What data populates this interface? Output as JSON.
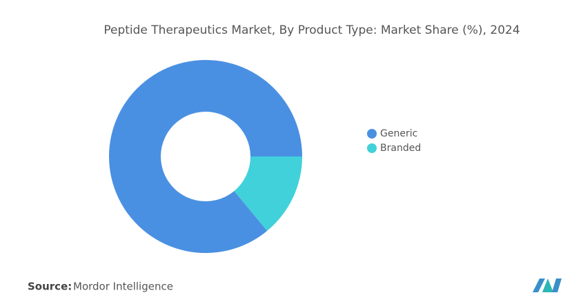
{
  "chart_data": {
    "type": "donut",
    "title": "Peptide Therapeutics Market, By Product Type: Market Share (%), 2024",
    "categories": [
      "Generic",
      "Branded"
    ],
    "values": [
      86,
      14
    ],
    "colors": [
      "#4a90e2",
      "#41d1da"
    ]
  },
  "footer": {
    "source_label": "Source:",
    "source": "Mordor Intelligence"
  }
}
